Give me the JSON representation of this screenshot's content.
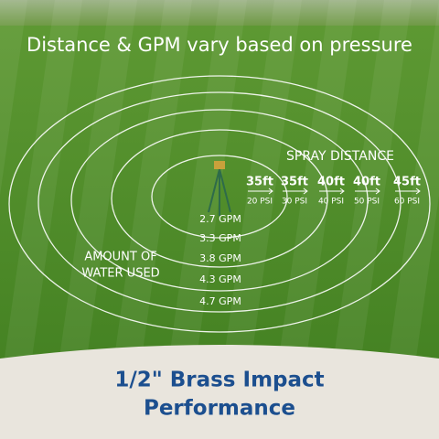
{
  "header": {
    "title": "Distance & GPM vary based on pressure"
  },
  "spray": {
    "label": "SPRAY DISTANCE",
    "distances": [
      {
        "distance": "35ft",
        "pressure": "20 PSI"
      },
      {
        "distance": "35ft",
        "pressure": "30 PSI"
      },
      {
        "distance": "40ft",
        "pressure": "40 PSI"
      },
      {
        "distance": "40ft",
        "pressure": "50 PSI"
      },
      {
        "distance": "45ft",
        "pressure": "60 PSI"
      }
    ]
  },
  "water": {
    "label_lines": [
      "AMOUNT OF",
      "WATER USED"
    ],
    "gpm": [
      "2.7 GPM",
      "3.3 GPM",
      "3.8 GPM",
      "4.3 GPM",
      "4.7 GPM"
    ]
  },
  "footer": {
    "title_lines": [
      "1/2\" Brass Impact",
      "Performance"
    ]
  }
}
